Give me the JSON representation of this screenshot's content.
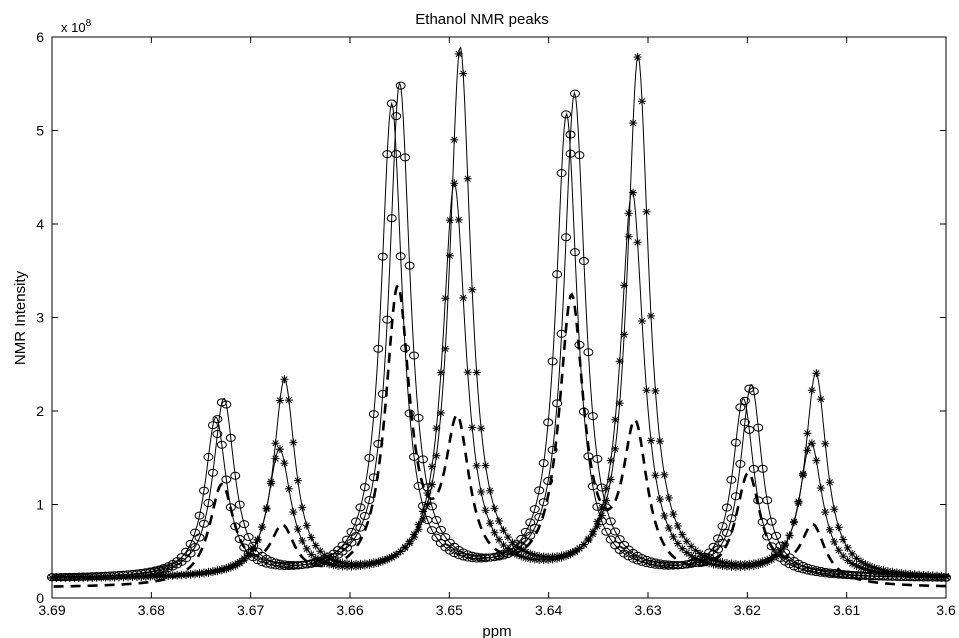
{
  "chart_data": {
    "type": "line",
    "title": "Ethanol NMR peaks",
    "xlabel": "ppm",
    "ylabel": "NMR Intensity",
    "x_reversed": true,
    "xlim": [
      3.6,
      3.69
    ],
    "ylim": [
      0,
      600000000
    ],
    "y_exponent_label": {
      "base": "x 10",
      "exp": "8"
    },
    "xticks": [
      3.69,
      3.68,
      3.67,
      3.66,
      3.65,
      3.64,
      3.63,
      3.62,
      3.61,
      3.6
    ],
    "xtick_labels": [
      "3.69",
      "3.68",
      "3.67",
      "3.66",
      "3.65",
      "3.64",
      "3.63",
      "3.62",
      "3.61",
      "3.6"
    ],
    "yticks": [
      0,
      100000000,
      200000000,
      300000000,
      400000000,
      500000000,
      600000000
    ],
    "ytick_labels": [
      "0",
      "1",
      "2",
      "3",
      "4",
      "5",
      "6"
    ],
    "grid": false,
    "series": [
      {
        "style": "solid-with-circle-markers",
        "baseline": 20000000,
        "hwhm": 0.0013,
        "peaks": [
          {
            "x": 3.6727,
            "y": 190000000
          },
          {
            "x": 3.655,
            "y": 527000000
          },
          {
            "x": 3.6374,
            "y": 516000000
          },
          {
            "x": 3.6196,
            "y": 205000000
          }
        ]
      },
      {
        "style": "solid-with-circle-markers",
        "baseline": 20000000,
        "hwhm": 0.0013,
        "peaks": [
          {
            "x": 3.6735,
            "y": 170000000
          },
          {
            "x": 3.6558,
            "y": 505000000
          },
          {
            "x": 3.6382,
            "y": 494000000
          },
          {
            "x": 3.6204,
            "y": 190000000
          }
        ]
      },
      {
        "style": "solid-with-star-markers",
        "baseline": 20000000,
        "hwhm": 0.0013,
        "peaks": [
          {
            "x": 3.6666,
            "y": 210000000
          },
          {
            "x": 3.6489,
            "y": 565000000
          },
          {
            "x": 3.631,
            "y": 555000000
          },
          {
            "x": 3.6131,
            "y": 217000000
          }
        ]
      },
      {
        "style": "solid-with-star-markers",
        "baseline": 20000000,
        "hwhm": 0.0014,
        "peaks": [
          {
            "x": 3.6671,
            "y": 136000000
          },
          {
            "x": 3.6495,
            "y": 420000000
          },
          {
            "x": 3.6316,
            "y": 412000000
          },
          {
            "x": 3.6136,
            "y": 143000000
          }
        ]
      },
      {
        "style": "dashed",
        "baseline": 10000000,
        "hwhm": 0.0015,
        "peaks": [
          {
            "x": 3.6729,
            "y": 105000000
          },
          {
            "x": 3.6668,
            "y": 55000000
          },
          {
            "x": 3.6552,
            "y": 310000000
          },
          {
            "x": 3.6492,
            "y": 160000000
          },
          {
            "x": 3.6377,
            "y": 300000000
          },
          {
            "x": 3.6313,
            "y": 160000000
          },
          {
            "x": 3.6199,
            "y": 115000000
          },
          {
            "x": 3.6134,
            "y": 60000000
          }
        ]
      }
    ]
  }
}
